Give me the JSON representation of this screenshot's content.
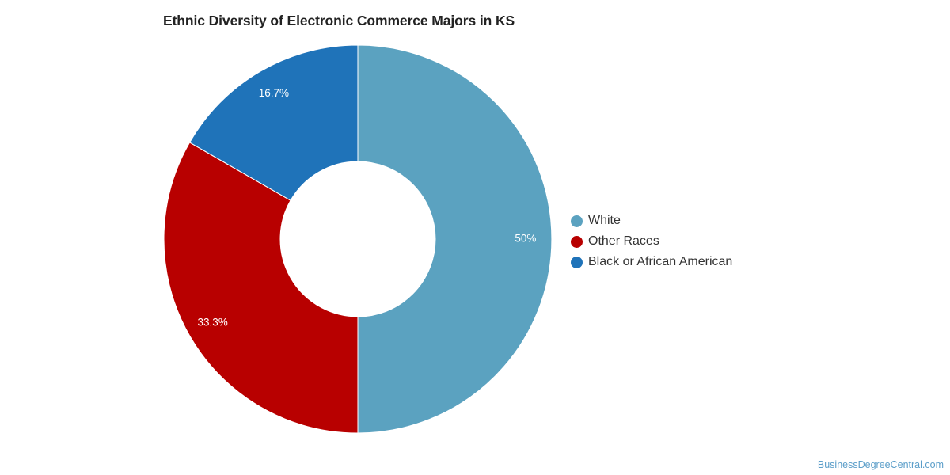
{
  "header": {
    "title": "Ethnic Diversity of Electronic Commerce Majors in KS"
  },
  "chart_data": {
    "type": "pie",
    "donut": true,
    "title": "Ethnic Diversity of Electronic Commerce Majors in KS",
    "legend_placement": "right",
    "slices": [
      {
        "name": "White",
        "value": 50,
        "label": "50%",
        "color": "#5ba2c0"
      },
      {
        "name": "Other Races",
        "value": 33.3,
        "label": "33.3%",
        "color": "#b80000"
      },
      {
        "name": "Black or African American",
        "value": 16.7,
        "label": "16.7%",
        "color": "#1f73b9"
      }
    ]
  },
  "footer": {
    "watermark": "BusinessDegreeCentral.com"
  }
}
